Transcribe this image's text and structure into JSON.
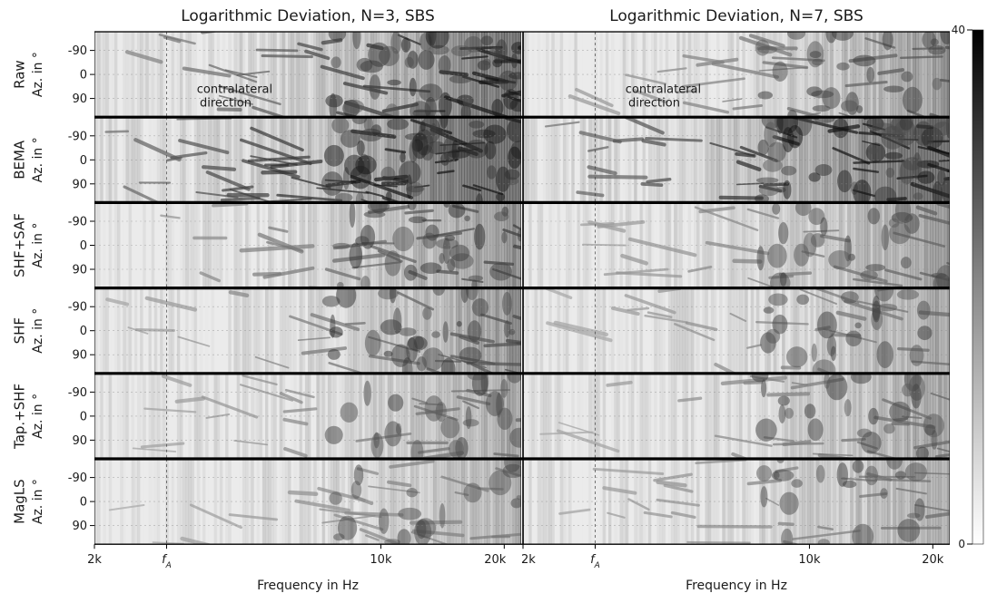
{
  "chart_data": {
    "type": "heatmap",
    "colormap": "grayscale (white = low, black = high)",
    "colorbar": {
      "min": 0,
      "max": 40,
      "tick_labels": [
        "0",
        "40"
      ]
    },
    "columns": [
      {
        "title": "Logarithmic Deviation, N=3, SBS",
        "order": 3
      },
      {
        "title": "Logarithmic Deviation, N=7, SBS",
        "order": 7
      }
    ],
    "rows": [
      {
        "method": "Raw",
        "ylabel": "Az. in °",
        "intensity_n3": 0.55,
        "intensity_n7": 0.35,
        "hf_dark_n3": 0.9,
        "hf_dark_n7": 0.55
      },
      {
        "method": "BEMA",
        "ylabel": "Az. in °",
        "intensity_n3": 0.8,
        "intensity_n7": 0.75,
        "hf_dark_n3": 1.0,
        "hf_dark_n7": 0.95
      },
      {
        "method": "SHF+SAF",
        "ylabel": "Az. in °",
        "intensity_n3": 0.35,
        "intensity_n7": 0.3,
        "hf_dark_n3": 0.65,
        "hf_dark_n7": 0.5
      },
      {
        "method": "SHF",
        "ylabel": "Az. in °",
        "intensity_n3": 0.32,
        "intensity_n7": 0.28,
        "hf_dark_n3": 0.6,
        "hf_dark_n7": 0.45
      },
      {
        "method": "Tap.+SHF",
        "ylabel": "Az. in °",
        "intensity_n3": 0.3,
        "intensity_n7": 0.3,
        "hf_dark_n3": 0.45,
        "hf_dark_n7": 0.45
      },
      {
        "method": "MagLS",
        "ylabel": "Az. in °",
        "intensity_n3": 0.28,
        "intensity_n7": 0.32,
        "hf_dark_n3": 0.35,
        "hf_dark_n7": 0.4
      }
    ],
    "y_ticks": [
      -90,
      0,
      90
    ],
    "y_tick_labels": [
      "-90",
      "0",
      "90"
    ],
    "ylim": [
      -160,
      160
    ],
    "x_scale": "log",
    "xlim": [
      2000,
      22000
    ],
    "x_ticks": [
      2000,
      10000,
      20000
    ],
    "x_tick_labels_n3": [
      "2k",
      "10k",
      "20k"
    ],
    "x_tick_labels_n7": [
      "2k",
      "10k",
      "20k"
    ],
    "f_A": {
      "value": 3000,
      "label": "f",
      "subscript": "A"
    },
    "xlabel": "Frequency in Hz",
    "annotation": {
      "lines": [
        "contralateral",
        "direction"
      ],
      "azimuth": 90
    }
  }
}
